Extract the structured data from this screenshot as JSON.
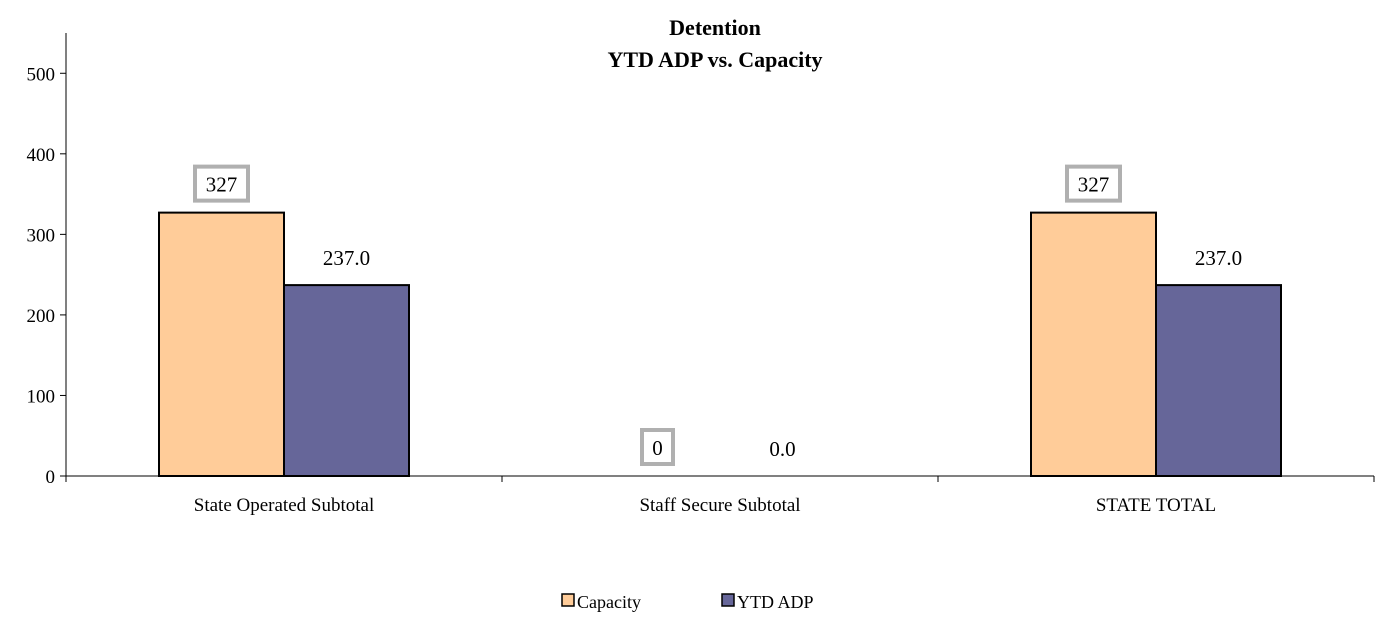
{
  "chart_data": {
    "type": "bar",
    "title": "Detention",
    "subtitle": "YTD ADP vs. Capacity",
    "categories": [
      "State Operated Subtotal",
      "Staff Secure Subtotal",
      "STATE TOTAL"
    ],
    "series": [
      {
        "name": "Capacity",
        "values": [
          327,
          0,
          327
        ],
        "labels": [
          "327",
          "0",
          "327"
        ],
        "color": "#FFCC99",
        "label_style": "boxed"
      },
      {
        "name": "YTD ADP",
        "values": [
          237.0,
          0.0,
          237.0
        ],
        "labels": [
          "237.0",
          "0.0",
          "237.0"
        ],
        "color": "#666699",
        "label_style": "plain"
      }
    ],
    "ylim": [
      0,
      550
    ],
    "yticks": [
      0,
      100,
      200,
      300,
      400,
      500
    ],
    "xlabel": "",
    "ylabel": "",
    "grid": false,
    "legend_position": "bottom"
  }
}
